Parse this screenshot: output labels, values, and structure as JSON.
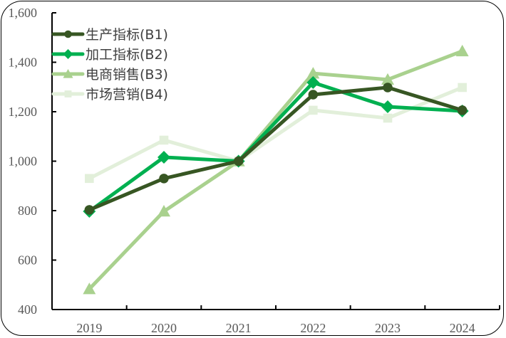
{
  "chart_data": {
    "type": "line",
    "title": "",
    "xlabel": "",
    "ylabel": "",
    "categories": [
      "2019",
      "2020",
      "2021",
      "2022",
      "2023",
      "2024"
    ],
    "ylim": [
      400,
      1600
    ],
    "yticks": [
      400,
      600,
      800,
      1000,
      1200,
      1400,
      1600
    ],
    "ytick_labels": [
      "400",
      "600",
      "800",
      "1,000",
      "1,200",
      "1,400",
      "1,600"
    ],
    "grid": false,
    "legend_position": "upper-left-inside",
    "series": [
      {
        "name": "生产指标(B1)",
        "color": "#375623",
        "marker": "circle",
        "values": [
          803,
          930,
          1000,
          1269,
          1298,
          1206
        ]
      },
      {
        "name": "加工指标(B2)",
        "color": "#00B050",
        "marker": "diamond",
        "values": [
          797,
          1016,
          1000,
          1318,
          1220,
          1203
        ]
      },
      {
        "name": "电商销售(B3)",
        "color": "#A9D18E",
        "marker": "triangle",
        "values": [
          483,
          797,
          1000,
          1355,
          1330,
          1445
        ]
      },
      {
        "name": "市场营销(B4)",
        "color": "#E2EFDA",
        "marker": "square",
        "values": [
          930,
          1085,
          1000,
          1206,
          1174,
          1298
        ]
      }
    ]
  }
}
